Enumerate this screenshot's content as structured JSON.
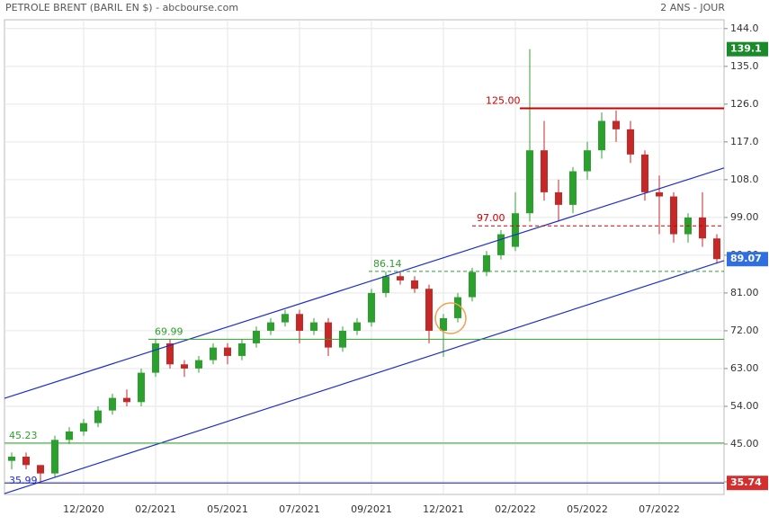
{
  "chart_data": {
    "type": "candlestick",
    "title": "PETROLE BRENT (BARIL EN $) - abcbourse.com",
    "subtitle": "2 ANS - JOUR",
    "categories": [
      null,
      null,
      null,
      null,
      null,
      "12/2020",
      null,
      null,
      null,
      null,
      "02/2021",
      null,
      null,
      null,
      null,
      "05/2021",
      null,
      null,
      null,
      null,
      "07/2021",
      null,
      null,
      null,
      null,
      "09/2021",
      null,
      null,
      null,
      null,
      "12/2021",
      null,
      null,
      null,
      null,
      "02/2022",
      null,
      null,
      null,
      null,
      "05/2022",
      null,
      null,
      null,
      null,
      "07/2022",
      null,
      null,
      null,
      null
    ],
    "open": [
      41,
      42,
      40,
      38,
      46,
      48,
      50,
      53,
      56,
      55,
      62,
      69,
      64,
      63,
      65,
      68,
      66,
      69,
      72,
      74,
      76,
      72,
      74,
      68,
      72,
      74,
      81,
      85,
      84,
      82,
      72,
      75,
      80,
      86,
      90,
      92,
      100,
      115,
      105,
      102,
      110,
      115,
      122,
      120,
      114,
      105,
      104,
      95,
      99,
      94
    ],
    "high": [
      43,
      43,
      40,
      47,
      49,
      51,
      54,
      57,
      58,
      63,
      69.99,
      70,
      65,
      66,
      69,
      69,
      70,
      73,
      75,
      77,
      77,
      75,
      75,
      73,
      75,
      82,
      86.14,
      86,
      85,
      83,
      76,
      81,
      87,
      91,
      96,
      105,
      139.1,
      122,
      108,
      111,
      117,
      124,
      124.5,
      122,
      115,
      109,
      105,
      100,
      105,
      95
    ],
    "low": [
      39,
      39,
      35.99,
      37,
      45,
      47,
      49,
      52,
      54,
      54,
      61,
      63,
      61,
      62,
      64,
      64,
      65,
      68,
      71,
      73,
      69,
      71,
      66,
      67,
      71,
      73,
      80,
      83,
      81,
      69,
      65.8,
      74,
      79,
      85,
      89,
      91,
      98,
      103,
      98,
      100,
      108,
      113,
      117,
      112,
      103,
      95,
      93,
      93,
      92,
      88
    ],
    "close": [
      42,
      40,
      38,
      46,
      48,
      50,
      53,
      56,
      55,
      62,
      69,
      64,
      63,
      65,
      68,
      66,
      69,
      72,
      74,
      76,
      72,
      74,
      68,
      72,
      74,
      81,
      85,
      84,
      82,
      72,
      75,
      80,
      86,
      90,
      95,
      100,
      115,
      105,
      102,
      110,
      115,
      122,
      120,
      114,
      105,
      104,
      95,
      99,
      94,
      89.07
    ],
    "up_color": "#2ca02c",
    "down_color": "#c62828",
    "ylim": [
      33,
      146.1
    ],
    "yticks": [
      {
        "value": 36,
        "label": "36.00"
      },
      {
        "value": 45,
        "label": "45.00"
      },
      {
        "value": 54,
        "label": "54.00"
      },
      {
        "value": 63,
        "label": "63.00"
      },
      {
        "value": 72,
        "label": "72.00"
      },
      {
        "value": 81,
        "label": "81.00"
      },
      {
        "value": 90,
        "label": "90.00"
      },
      {
        "value": 99,
        "label": "99.00"
      },
      {
        "value": 108,
        "label": "108.0"
      },
      {
        "value": 117,
        "label": "117.0"
      },
      {
        "value": 126,
        "label": "126.0"
      },
      {
        "value": 135,
        "label": "135.0"
      },
      {
        "value": 144,
        "label": "144.0"
      }
    ],
    "grid": true,
    "levels": [
      {
        "value": 125,
        "label": "125.00",
        "color": "#cc0000",
        "dashed": false
      },
      {
        "value": 97,
        "label": "97.00",
        "color": "#cc0000",
        "dashed": true
      },
      {
        "value": 86.14,
        "label": "86.14",
        "color": "#2ca02c",
        "dashed": true
      },
      {
        "value": 69.99,
        "label": "69.99",
        "color": "#2ca02c",
        "dashed": false
      },
      {
        "value": 45.23,
        "label": "45.23",
        "color": "#2ca02c",
        "dashed": false
      }
    ],
    "channel": [
      {
        "start": 55.9,
        "end": 110.8
      },
      {
        "start": 33.2,
        "end": 88.7
      }
    ],
    "channel_color": "#1f2fcc",
    "support": 35.74,
    "last": 89.07
  }
}
